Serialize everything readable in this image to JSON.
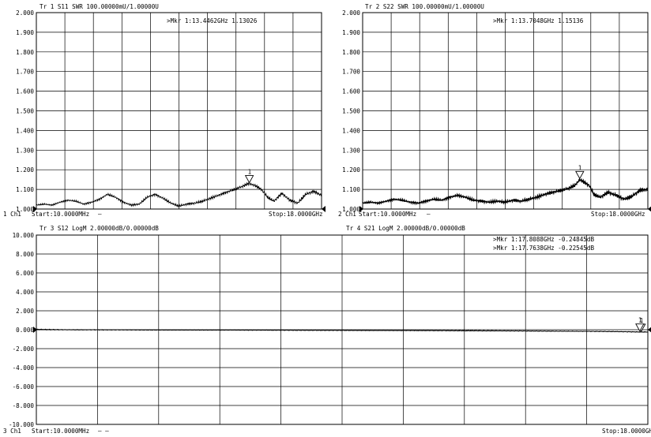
{
  "chart_data": [
    {
      "type": "line",
      "channel_label": "1 Ch1",
      "header": "Tr 1  S11 SWR 100.00000mU/1.00000U",
      "marker_readouts": [
        ">Mkr 1:13.4462GHz 1.13026"
      ],
      "start": "Start:10.0000MHz",
      "stop": "Stop:18.0000GHz",
      "xlim": [
        0.01,
        18.0
      ],
      "ylim": [
        1.0,
        2.0
      ],
      "yticks": [
        "2.000",
        "1.900",
        "1.800",
        "1.700",
        "1.600",
        "1.500",
        "1.400",
        "1.300",
        "1.200",
        "1.100",
        "1.000"
      ],
      "series": [
        {
          "x": [
            0.01,
            0.5,
            1,
            1.5,
            2,
            2.5,
            3,
            3.5,
            4,
            4.5,
            5,
            5.5,
            6,
            6.5,
            7,
            7.5,
            8,
            8.5,
            9,
            9.5,
            10,
            10.5,
            11,
            11.5,
            12,
            12.5,
            13,
            13.4,
            13.8,
            14.2,
            14.6,
            15,
            15.5,
            16,
            16.5,
            17,
            17.5,
            18
          ],
          "y": [
            1.02,
            1.025,
            1.02,
            1.035,
            1.045,
            1.04,
            1.025,
            1.035,
            1.05,
            1.075,
            1.06,
            1.035,
            1.02,
            1.025,
            1.06,
            1.075,
            1.055,
            1.03,
            1.015,
            1.025,
            1.03,
            1.04,
            1.055,
            1.07,
            1.085,
            1.1,
            1.115,
            1.13,
            1.12,
            1.1,
            1.06,
            1.04,
            1.08,
            1.045,
            1.03,
            1.075,
            1.09,
            1.07
          ]
        }
      ],
      "markers": [
        {
          "label": "1",
          "x": 13.4462,
          "y": 1.13026
        }
      ]
    },
    {
      "type": "line",
      "channel_label": "2 Ch1",
      "header": "Tr 2  S22 SWR 100.00000mU/1.00000U",
      "marker_readouts": [
        ">Mkr 1:13.7048GHz 1.15136"
      ],
      "start": "Start:10.0000MHz",
      "stop": "Stop:18.0000GHz",
      "xlim": [
        0.01,
        18.0
      ],
      "ylim": [
        1.0,
        2.0
      ],
      "yticks": [
        "2.000",
        "1.900",
        "1.800",
        "1.700",
        "1.600",
        "1.500",
        "1.400",
        "1.300",
        "1.200",
        "1.100",
        "1.000"
      ],
      "series": [
        {
          "x": [
            0.01,
            0.5,
            1,
            1.5,
            2,
            2.5,
            3,
            3.5,
            4,
            4.5,
            5,
            5.5,
            6,
            6.5,
            7,
            7.5,
            8,
            8.5,
            9,
            9.5,
            10,
            10.5,
            11,
            11.5,
            12,
            12.5,
            13,
            13.4,
            13.7,
            14,
            14.3,
            14.6,
            15,
            15.5,
            16,
            16.5,
            17,
            17.5,
            18
          ],
          "y": [
            1.03,
            1.035,
            1.03,
            1.04,
            1.05,
            1.045,
            1.035,
            1.03,
            1.04,
            1.05,
            1.045,
            1.06,
            1.07,
            1.06,
            1.045,
            1.04,
            1.035,
            1.04,
            1.035,
            1.045,
            1.04,
            1.05,
            1.06,
            1.075,
            1.085,
            1.095,
            1.105,
            1.12,
            1.15,
            1.135,
            1.12,
            1.075,
            1.06,
            1.085,
            1.07,
            1.05,
            1.065,
            1.095,
            1.1
          ]
        }
      ],
      "markers": [
        {
          "label": "1",
          "x": 13.7048,
          "y": 1.15136
        }
      ]
    },
    {
      "type": "line",
      "channel_label": "3 Ch1",
      "headers": [
        "Tr 3  S12 LogM 2.00000dB/0.00000dB",
        "Tr 4  S21 LogM 2.00000dB/0.00000dB"
      ],
      "marker_readouts": [
        ">Mkr 1:17.8088GHz -0.24845dB",
        ">Mkr 1:17.7638GHz -0.22545dB"
      ],
      "start": "Start:10.0000MHz",
      "stop": "Stop:18.0000GH",
      "xlim": [
        0.01,
        18.0
      ],
      "ylim": [
        -10.0,
        10.0
      ],
      "yticks": [
        "10.000",
        "8.000",
        "6.000",
        "4.000",
        "2.000",
        "0.000",
        "-2.000",
        "-4.000",
        "-6.000",
        "-8.000",
        "-10.000"
      ],
      "series": [
        {
          "x": [
            0.01,
            1,
            2,
            3,
            4,
            5,
            6,
            7,
            8,
            9,
            10,
            11,
            12,
            13,
            14,
            15,
            16,
            17,
            17.8,
            18
          ],
          "y": [
            0.05,
            0.0,
            0.0,
            -0.02,
            -0.03,
            -0.03,
            -0.04,
            -0.05,
            -0.06,
            -0.07,
            -0.08,
            -0.09,
            -0.1,
            -0.12,
            -0.13,
            -0.15,
            -0.17,
            -0.2,
            -0.248,
            -0.25
          ]
        },
        {
          "x": [
            0.01,
            1,
            2,
            3,
            4,
            5,
            6,
            7,
            8,
            9,
            10,
            11,
            12,
            13,
            14,
            15,
            16,
            17,
            17.76,
            18
          ],
          "y": [
            0.0,
            -0.01,
            -0.02,
            -0.02,
            -0.03,
            -0.04,
            -0.04,
            -0.05,
            -0.06,
            -0.06,
            -0.07,
            -0.08,
            -0.09,
            -0.1,
            -0.12,
            -0.14,
            -0.16,
            -0.19,
            -0.225,
            -0.23
          ]
        }
      ],
      "markers": [
        {
          "label": "1",
          "x": 17.8088,
          "y": -0.24845
        },
        {
          "label": "1",
          "x": 17.7638,
          "y": -0.22545
        }
      ]
    }
  ],
  "ui": {
    "stop_dash_1": "—",
    "stop_dash_2": "—",
    "stop_dash_3": "— —"
  }
}
